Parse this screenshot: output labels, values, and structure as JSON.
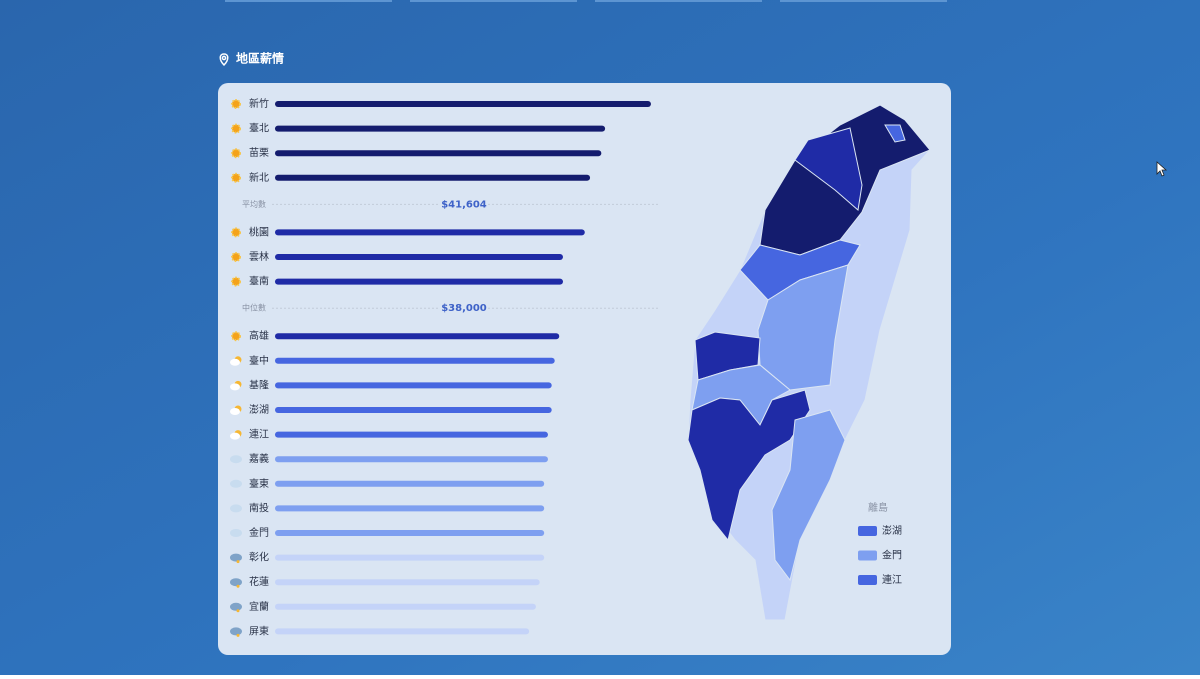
{
  "header": {
    "title": "地區薪情"
  },
  "chart_data": {
    "type": "bar",
    "orientation": "horizontal",
    "categories": [
      "新竹",
      "臺北",
      "苗栗",
      "新北",
      "桃園",
      "雲林",
      "臺南",
      "高雄",
      "臺中",
      "基隆",
      "澎湖",
      "連江",
      "嘉義",
      "臺東",
      "南投",
      "金門",
      "彰化",
      "花蓮",
      "宜蘭",
      "屏東"
    ],
    "values": [
      50000,
      43900,
      43400,
      41900,
      41200,
      38300,
      38300,
      37800,
      37200,
      36800,
      36800,
      36300,
      36300,
      35800,
      35800,
      35800,
      35800,
      35200,
      34700,
      33800
    ],
    "colors": [
      "#141c6e",
      "#141c6e",
      "#141c6e",
      "#141c6e",
      "#1f2ba6",
      "#1f2ba6",
      "#1f2ba6",
      "#1f2ba6",
      "#4666e0",
      "#4666e0",
      "#4666e0",
      "#4666e0",
      "#7e9ff0",
      "#7e9ff0",
      "#7e9ff0",
      "#7e9ff0",
      "#c4d3f8",
      "#c4d3f8",
      "#c4d3f8",
      "#c4d3f8"
    ],
    "xlim": [
      0,
      52000
    ],
    "reference_lines": [
      {
        "label": "平均數",
        "value": 41604,
        "value_label": "$41,604"
      },
      {
        "label": "中位數",
        "value": 38000,
        "value_label": "$38,000"
      }
    ]
  },
  "map": {
    "legend_title": "離島",
    "legend": [
      {
        "name": "澎湖",
        "color": "#4666e0"
      },
      {
        "name": "金門",
        "color": "#7e9ff0"
      },
      {
        "name": "連江",
        "color": "#4666e0"
      }
    ]
  }
}
